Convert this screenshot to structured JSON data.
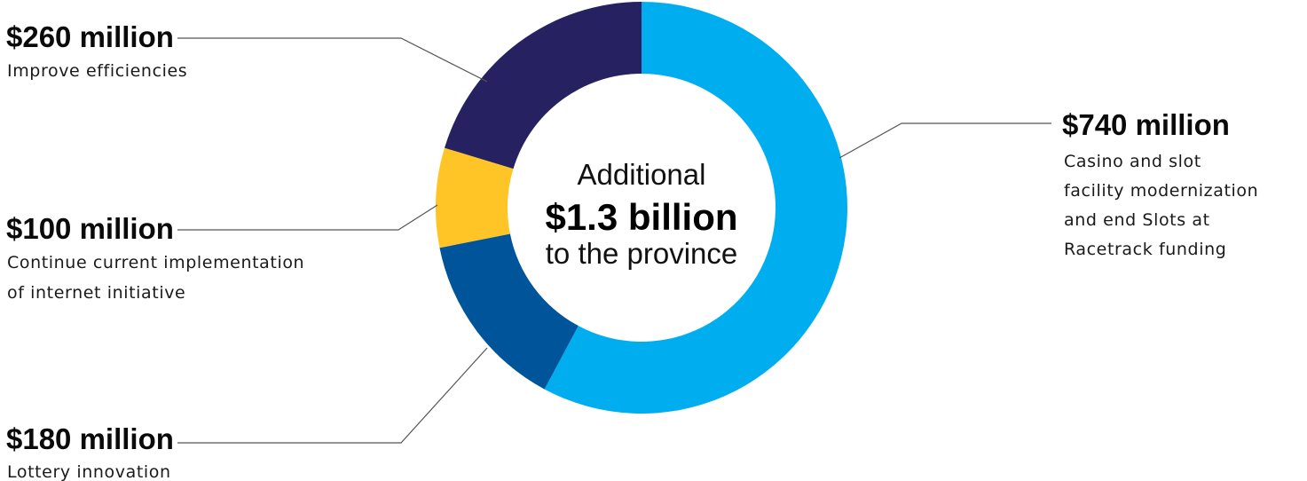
{
  "chart_data": {
    "type": "pie",
    "center": {
      "line1": "Additional",
      "line2": "$1.3 billion",
      "line3": "to the province"
    },
    "slices": [
      {
        "amount_label": "$740 million",
        "value": 740,
        "description": [
          "Casino and slot",
          "facility modernization",
          "and end Slots at",
          "Racetrack funding"
        ],
        "color": "#00AEEF"
      },
      {
        "amount_label": "$180 million",
        "value": 180,
        "description": [
          "Lottery innovation"
        ],
        "color": "#00549A"
      },
      {
        "amount_label": "$100 million",
        "value": 100,
        "description": [
          "Continue current implementation",
          "of internet initiative"
        ],
        "color": "#FFC425"
      },
      {
        "amount_label": "$260 million",
        "value": 260,
        "description": [
          "Improve efficiencies"
        ],
        "color": "#262262"
      }
    ],
    "total_value": 1280
  }
}
